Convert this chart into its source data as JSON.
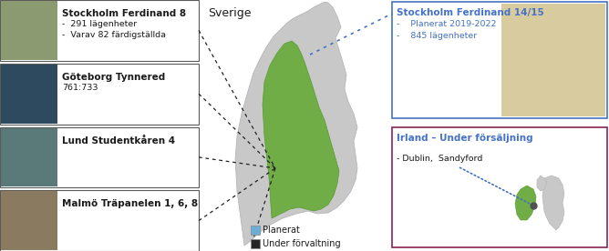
{
  "title_sverige": "Sverige",
  "left_boxes": [
    {
      "title": "Stockholm Ferdinand 8",
      "lines": [
        "-  291 lägenheter",
        "-  Varav 82 färdigställda"
      ]
    },
    {
      "title": "Göteborg Tynnered",
      "lines": [
        "761:733"
      ]
    },
    {
      "title": "Lund Studentkåren 4",
      "lines": []
    },
    {
      "title": "Malmö Träpanelen 1, 6, 8",
      "lines": []
    }
  ],
  "top_right_box": {
    "title": "Stockholm Ferdinand 14/15",
    "lines": [
      "-    Planerat 2019-2022",
      "-    845 lägenheter"
    ],
    "border_color": "#4472C4"
  },
  "bottom_right_box": {
    "title": "Irland – Under försäljning",
    "lines": [
      "- Dublin,  Sandyford"
    ],
    "border_color": "#882255"
  },
  "legend": [
    {
      "label": "Planerat",
      "color": "#6BAED6"
    },
    {
      "label": "Under förvaltning",
      "color": "#252525"
    }
  ],
  "bg_color": "#FFFFFF",
  "sweden_green": "#70AD47",
  "ireland_green": "#70AD47",
  "map_gray": "#C8C8C8",
  "left_box_border": "#5A5A5A",
  "text_dark": "#1A1A1A",
  "text_blue": "#4472C4"
}
